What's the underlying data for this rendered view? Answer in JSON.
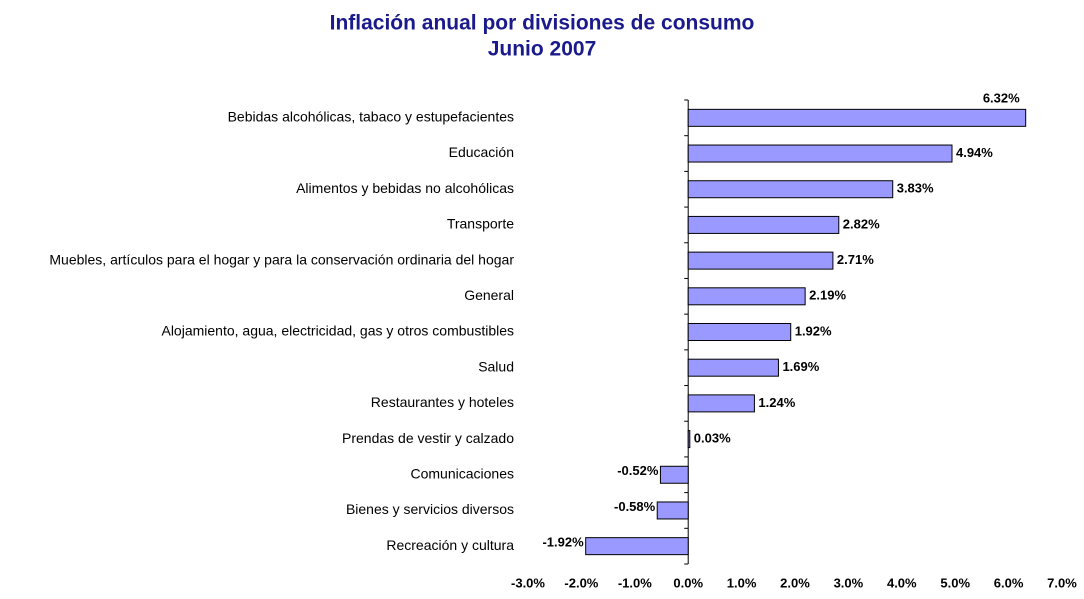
{
  "chart_data": {
    "type": "barh",
    "title": "Inflación anual por divisiones de consumo",
    "subtitle": "Junio 2007",
    "categories": [
      "Bebidas alcohólicas, tabaco y estupefacientes",
      "Educación",
      "Alimentos y bebidas no alcohólicas",
      "Transporte",
      "Muebles, artículos para el hogar y para la conservación ordinaria del hogar",
      "General",
      "Alojamiento, agua, electricidad, gas y otros combustibles",
      "Salud",
      "Restaurantes y hoteles",
      "Prendas de vestir y calzado",
      "Comunicaciones",
      "Bienes y servicios diversos",
      "Recreación y cultura"
    ],
    "values": [
      6.32,
      4.94,
      3.83,
      2.82,
      2.71,
      2.19,
      1.92,
      1.69,
      1.24,
      0.03,
      -0.52,
      -0.58,
      -1.92
    ],
    "value_labels": [
      "6.32%",
      "4.94%",
      "3.83%",
      "2.82%",
      "2.71%",
      "2.19%",
      "1.92%",
      "1.69%",
      "1.24%",
      "0.03%",
      "-0.52%",
      "-0.58%",
      "-1.92%"
    ],
    "color": "#9999ff",
    "xlim": [
      -3,
      7
    ],
    "xticks": [
      {
        "value": -3,
        "label": "-3.0%"
      },
      {
        "value": -2,
        "label": "-2.0%"
      },
      {
        "value": -1,
        "label": "-1.0%"
      },
      {
        "value": 0,
        "label": "0.0%"
      },
      {
        "value": 1,
        "label": "1.0%"
      },
      {
        "value": 2,
        "label": "2.0%"
      },
      {
        "value": 3,
        "label": "3.0%"
      },
      {
        "value": 4,
        "label": "4.0%"
      },
      {
        "value": 5,
        "label": "5.0%"
      },
      {
        "value": 6,
        "label": "6.0%"
      },
      {
        "value": 7,
        "label": "7.0%"
      }
    ],
    "grid": false
  }
}
